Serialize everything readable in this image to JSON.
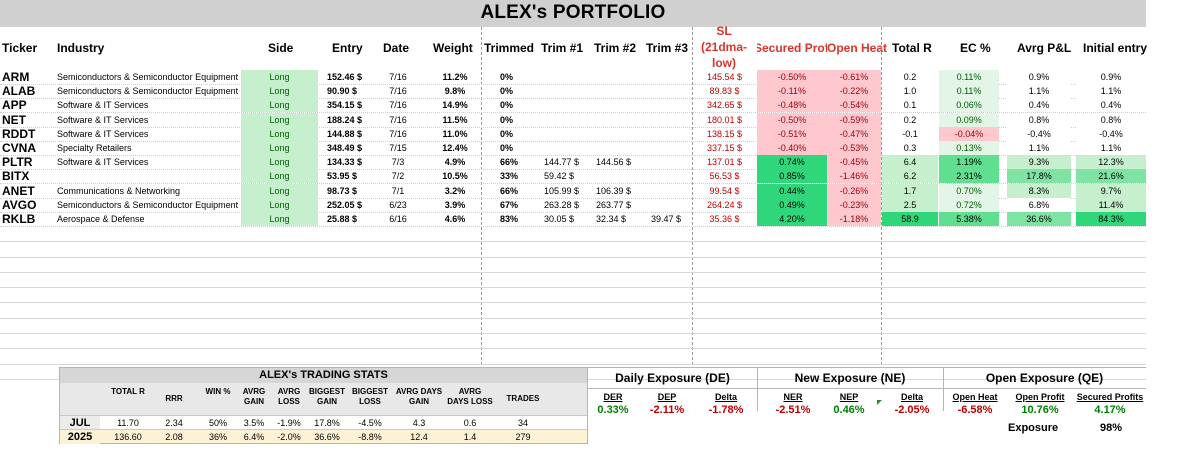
{
  "title": "ALEX's PORTFOLIO",
  "headers": {
    "ticker": "Ticker",
    "industry": "Industry",
    "side": "Side",
    "entry": "Entry",
    "date": "Date",
    "weight": "Weight",
    "trimmed": "Trimmed",
    "trim1": "Trim #1",
    "trim2": "Trim #2",
    "trim3": "Trim #3",
    "sl_line1": "SL",
    "sl_line2": "(21dma-",
    "sl_line3": "low)",
    "secured": "Secured Profit:",
    "open_heat": "Open Heat",
    "total_r": "Total R",
    "ec": "EC %",
    "avg_pnl": "Avrg P&L",
    "initial": "Initial entry"
  },
  "positions": [
    {
      "ticker": "ARM",
      "industry": "Semiconductors & Semiconductor Equipment",
      "side": "Long",
      "entry": "152.46 $",
      "date": "7/16",
      "weight": "11.2%",
      "trimmed": "0%",
      "trim1": "",
      "trim2": "",
      "trim3": "",
      "sl": "145.54 $",
      "secured": "-0.50%",
      "heat": "-0.61%",
      "total_r": "0.2",
      "ec": "0.11%",
      "avg": "0.9%",
      "initial": "0.9%"
    },
    {
      "ticker": "ALAB",
      "industry": "Semiconductors & Semiconductor Equipment",
      "side": "Long",
      "entry": "90.90 $",
      "date": "7/16",
      "weight": "9.8%",
      "trimmed": "0%",
      "trim1": "",
      "trim2": "",
      "trim3": "",
      "sl": "89.83 $",
      "secured": "-0.11%",
      "heat": "-0.22%",
      "total_r": "1.0",
      "ec": "0.11%",
      "avg": "1.1%",
      "initial": "1.1%"
    },
    {
      "ticker": "APP",
      "industry": "Software & IT Services",
      "side": "Long",
      "entry": "354.15 $",
      "date": "7/16",
      "weight": "14.9%",
      "trimmed": "0%",
      "trim1": "",
      "trim2": "",
      "trim3": "",
      "sl": "342.65 $",
      "secured": "-0.48%",
      "heat": "-0.54%",
      "total_r": "0.1",
      "ec": "0.06%",
      "avg": "0.4%",
      "initial": "0.4%"
    },
    {
      "ticker": "NET",
      "industry": "Software & IT Services",
      "side": "Long",
      "entry": "188.24 $",
      "date": "7/16",
      "weight": "11.5%",
      "trimmed": "0%",
      "trim1": "",
      "trim2": "",
      "trim3": "",
      "sl": "180.01 $",
      "secured": "-0.50%",
      "heat": "-0.59%",
      "total_r": "0.2",
      "ec": "0.09%",
      "avg": "0.8%",
      "initial": "0.8%"
    },
    {
      "ticker": "RDDT",
      "industry": "Software & IT Services",
      "side": "Long",
      "entry": "144.88 $",
      "date": "7/16",
      "weight": "11.0%",
      "trimmed": "0%",
      "trim1": "",
      "trim2": "",
      "trim3": "",
      "sl": "138.15 $",
      "secured": "-0.51%",
      "heat": "-0.47%",
      "total_r": "-0.1",
      "ec": "-0.04%",
      "avg": "-0.4%",
      "initial": "-0.4%"
    },
    {
      "ticker": "CVNA",
      "industry": "Specialty Retailers",
      "side": "Long",
      "entry": "348.49 $",
      "date": "7/15",
      "weight": "12.4%",
      "trimmed": "0%",
      "trim1": "",
      "trim2": "",
      "trim3": "",
      "sl": "337.15 $",
      "secured": "-0.40%",
      "heat": "-0.53%",
      "total_r": "0.3",
      "ec": "0.13%",
      "avg": "1.1%",
      "initial": "1.1%"
    },
    {
      "ticker": "PLTR",
      "industry": "Software & IT Services",
      "side": "Long",
      "entry": "134.33 $",
      "date": "7/3",
      "weight": "4.9%",
      "trimmed": "66%",
      "trim1": "144.77 $",
      "trim2": "144.56 $",
      "trim3": "",
      "sl": "137.01 $",
      "secured": "0.74%",
      "heat": "-0.45%",
      "total_r": "6.4",
      "ec": "1.19%",
      "avg": "9.3%",
      "initial": "12.3%"
    },
    {
      "ticker": "BITX",
      "industry": "",
      "side": "Long",
      "entry": "53.95 $",
      "date": "7/2",
      "weight": "10.5%",
      "trimmed": "33%",
      "trim1": "59.42 $",
      "trim2": "",
      "trim3": "",
      "sl": "56.53 $",
      "secured": "0.85%",
      "heat": "-1.46%",
      "total_r": "6.2",
      "ec": "2.31%",
      "avg": "17.8%",
      "initial": "21.6%"
    },
    {
      "ticker": "ANET",
      "industry": "Communications & Networking",
      "side": "Long",
      "entry": "98.73 $",
      "date": "7/1",
      "weight": "3.2%",
      "trimmed": "66%",
      "trim1": "105.99 $",
      "trim2": "106.39 $",
      "trim3": "",
      "sl": "99.54 $",
      "secured": "0.44%",
      "heat": "-0.26%",
      "total_r": "1.7",
      "ec": "0.70%",
      "avg": "8.3%",
      "initial": "9.7%"
    },
    {
      "ticker": "AVGO",
      "industry": "Semiconductors & Semiconductor Equipment",
      "side": "Long",
      "entry": "252.05 $",
      "date": "6/23",
      "weight": "3.9%",
      "trimmed": "67%",
      "trim1": "263.28 $",
      "trim2": "263.77 $",
      "trim3": "",
      "sl": "264.24 $",
      "secured": "0.49%",
      "heat": "-0.23%",
      "total_r": "2.5",
      "ec": "0.72%",
      "avg": "6.8%",
      "initial": "11.4%"
    },
    {
      "ticker": "RKLB",
      "industry": "Aerospace & Defense",
      "side": "Long",
      "entry": "25.88 $",
      "date": "6/16",
      "weight": "4.6%",
      "trimmed": "83%",
      "trim1": "30.05 $",
      "trim2": "32.34 $",
      "trim3": "39.47 $",
      "sl": "35.36 $",
      "secured": "4.20%",
      "heat": "-1.18%",
      "total_r": "58.9",
      "ec": "5.38%",
      "avg": "36.6%",
      "initial": "84.3%"
    }
  ],
  "stats": {
    "title": "ALEX's TRADING STATS",
    "headers": [
      "TOTAL R",
      "RRR",
      "WIN %",
      "AVRG GAIN",
      "AVRG LOSS",
      "BIGGEST GAIN",
      "BIGGEST LOSS",
      "AVRG DAYS GAIN",
      "AVRG DAYS LOSS",
      "TRADES"
    ],
    "rows": [
      {
        "label": "JUL",
        "values": [
          "11.70",
          "2.34",
          "50%",
          "3.5%",
          "-1.9%",
          "17.8%",
          "-4.5%",
          "4.3",
          "0.6",
          "34"
        ]
      },
      {
        "label": "2025",
        "values": [
          "136.60",
          "2.08",
          "36%",
          "6.4%",
          "-2.0%",
          "36.6%",
          "-8.8%",
          "12.4",
          "1.4",
          "279"
        ]
      }
    ]
  },
  "exposure": {
    "daily": {
      "title": "Daily Exposure (DE)",
      "labels": [
        "DER",
        "DEP",
        "Delta"
      ],
      "values": [
        "0.33%",
        "-2.11%",
        "-1.78%"
      ]
    },
    "new": {
      "title": "New Exposure (NE)",
      "labels": [
        "NER",
        "NEP",
        "Delta"
      ],
      "values": [
        "-2.51%",
        "0.46%",
        "-2.05%"
      ]
    },
    "open": {
      "title": "Open Exposure (QE)",
      "labels": [
        "Open Heat",
        "Open Profit",
        "Secured Profits"
      ],
      "values": [
        "-6.58%",
        "10.76%",
        "4.17%"
      ]
    },
    "exposure_label": "Exposure",
    "exposure_value": "98%"
  },
  "colors": {
    "green_fill": "#c6efce",
    "green_text": "#006100",
    "red_fill": "#ffc7ce",
    "red_text": "#c00000",
    "strong_green": "#2fd67a",
    "title_gray": "#d0d0d0"
  }
}
